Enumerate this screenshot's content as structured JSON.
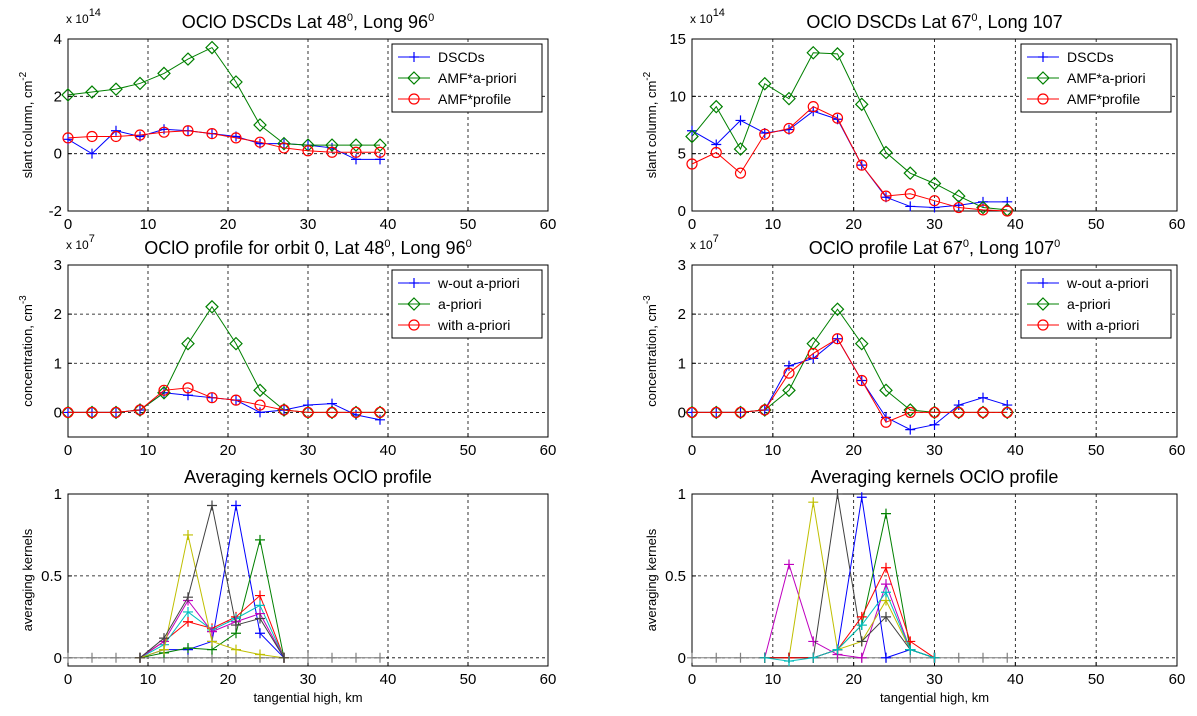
{
  "chart_data": [
    {
      "type": "line",
      "title": "OClO DSCDs Lat 48",
      "title_sup": "0",
      "title_rest": ", Long 96",
      "title_sup2": "0",
      "ylabel": "slant column, cm",
      "ylabel_sup": "-2",
      "xlabel": "",
      "multiplier": "x 10",
      "multiplier_exp": "14",
      "xlim": [
        0,
        60
      ],
      "ylim": [
        -2,
        4
      ],
      "xticks": [
        "0",
        "10",
        "20",
        "30",
        "40",
        "50",
        "60"
      ],
      "yticks": [
        "-2",
        "0",
        "2",
        "4"
      ],
      "grid": true,
      "legend": "top-right",
      "series": [
        {
          "name": "DSCDs",
          "color": "#0000ff",
          "marker": "plus",
          "x": [
            0,
            3,
            6,
            9,
            12,
            15,
            18,
            21,
            24,
            27,
            30,
            33,
            36,
            39
          ],
          "y": [
            0.5,
            0.0,
            0.8,
            0.6,
            0.85,
            0.8,
            0.7,
            0.6,
            0.35,
            0.35,
            0.3,
            0.2,
            -0.2,
            -0.2
          ]
        },
        {
          "name": "AMF*a-priori",
          "color": "#008000",
          "marker": "diamond",
          "x": [
            0,
            3,
            6,
            9,
            12,
            15,
            18,
            21,
            24,
            27,
            30,
            33,
            36,
            39
          ],
          "y": [
            2.05,
            2.15,
            2.25,
            2.45,
            2.8,
            3.3,
            3.7,
            2.5,
            1.0,
            0.35,
            0.3,
            0.3,
            0.3,
            0.3
          ]
        },
        {
          "name": "AMF*profile",
          "color": "#ff0000",
          "marker": "circle",
          "x": [
            0,
            3,
            6,
            9,
            12,
            15,
            18,
            21,
            24,
            27,
            30,
            33,
            36,
            39
          ],
          "y": [
            0.55,
            0.6,
            0.6,
            0.65,
            0.75,
            0.8,
            0.7,
            0.55,
            0.4,
            0.2,
            0.1,
            0.05,
            0.05,
            0.05
          ]
        }
      ]
    },
    {
      "type": "line",
      "title": "OClO DSCDs Lat 67",
      "title_sup": "0",
      "title_rest": ", Long 107",
      "title_sup2": "",
      "ylabel": "slant column, cm",
      "ylabel_sup": "-2",
      "xlabel": "",
      "multiplier": "x 10",
      "multiplier_exp": "14",
      "xlim": [
        0,
        60
      ],
      "ylim": [
        0,
        15
      ],
      "xticks": [
        "0",
        "10",
        "20",
        "30",
        "40",
        "50",
        "60"
      ],
      "yticks": [
        "0",
        "5",
        "10",
        "15"
      ],
      "grid": true,
      "legend": "top-right",
      "series": [
        {
          "name": "DSCDs",
          "color": "#0000ff",
          "marker": "plus",
          "x": [
            0,
            3,
            6,
            9,
            12,
            15,
            18,
            21,
            24,
            27,
            30,
            33,
            36,
            39
          ],
          "y": [
            7.0,
            5.8,
            7.9,
            6.8,
            7.1,
            8.7,
            8.0,
            4.0,
            1.2,
            0.4,
            0.3,
            0.5,
            0.8,
            0.8
          ]
        },
        {
          "name": "AMF*a-priori",
          "color": "#008000",
          "marker": "diamond",
          "x": [
            0,
            3,
            6,
            9,
            12,
            15,
            18,
            21,
            24,
            27,
            30,
            33,
            36,
            39
          ],
          "y": [
            6.5,
            9.1,
            5.4,
            11.1,
            9.8,
            13.8,
            13.7,
            9.3,
            5.1,
            3.3,
            2.4,
            1.3,
            0.3,
            0.1
          ]
        },
        {
          "name": "AMF*profile",
          "color": "#ff0000",
          "marker": "circle",
          "x": [
            0,
            3,
            6,
            9,
            12,
            15,
            18,
            21,
            24,
            27,
            30,
            33,
            36,
            39
          ],
          "y": [
            4.1,
            5.1,
            3.3,
            6.7,
            7.2,
            9.1,
            8.1,
            4.0,
            1.3,
            1.5,
            0.9,
            0.3,
            0.1,
            0.0
          ]
        }
      ]
    },
    {
      "type": "line",
      "title": "OClO profile for orbit 0, Lat 48",
      "title_sup": "0",
      "title_rest": ", Long 96",
      "title_sup2": "0",
      "ylabel": "concentration, cm",
      "ylabel_sup": "-3",
      "xlabel": "",
      "multiplier": "x 10",
      "multiplier_exp": "7",
      "xlim": [
        0,
        60
      ],
      "ylim": [
        -0.5,
        3
      ],
      "xticks": [
        "0",
        "10",
        "20",
        "30",
        "40",
        "50",
        "60"
      ],
      "yticks": [
        "0",
        "1",
        "2",
        "3"
      ],
      "grid": true,
      "legend": "top-right",
      "series": [
        {
          "name": "w-out a-priori",
          "color": "#0000ff",
          "marker": "plus",
          "x": [
            0,
            3,
            6,
            9,
            12,
            15,
            18,
            21,
            24,
            27,
            30,
            33,
            36,
            39
          ],
          "y": [
            0,
            0,
            0,
            0.05,
            0.4,
            0.35,
            0.3,
            0.25,
            0.0,
            0.05,
            0.15,
            0.18,
            -0.05,
            -0.15
          ]
        },
        {
          "name": "a-priori",
          "color": "#008000",
          "marker": "diamond",
          "x": [
            0,
            3,
            6,
            9,
            12,
            15,
            18,
            21,
            24,
            27,
            30,
            33,
            36,
            39
          ],
          "y": [
            0,
            0,
            0,
            0.05,
            0.4,
            1.4,
            2.15,
            1.4,
            0.45,
            0.05,
            0.0,
            0.0,
            0.0,
            0.0
          ]
        },
        {
          "name": "with a-priori",
          "color": "#ff0000",
          "marker": "circle",
          "x": [
            0,
            3,
            6,
            9,
            12,
            15,
            18,
            21,
            24,
            27,
            30,
            33,
            36,
            39
          ],
          "y": [
            0,
            0,
            0,
            0.05,
            0.45,
            0.5,
            0.3,
            0.25,
            0.15,
            0.05,
            0.0,
            0.0,
            0.0,
            0.0
          ]
        }
      ]
    },
    {
      "type": "line",
      "title": "OClO profile Lat 67",
      "title_sup": "0",
      "title_rest": ", Long 107",
      "title_sup2": "0",
      "ylabel": "concentration, cm",
      "ylabel_sup": "-3",
      "xlabel": "",
      "multiplier": "x 10",
      "multiplier_exp": "7",
      "xlim": [
        0,
        60
      ],
      "ylim": [
        -0.5,
        3
      ],
      "xticks": [
        "0",
        "10",
        "20",
        "30",
        "40",
        "50",
        "60"
      ],
      "yticks": [
        "0",
        "1",
        "2",
        "3"
      ],
      "grid": true,
      "legend": "top-right",
      "series": [
        {
          "name": "w-out a-priori",
          "color": "#0000ff",
          "marker": "plus",
          "x": [
            0,
            3,
            6,
            9,
            12,
            15,
            18,
            21,
            24,
            27,
            30,
            33,
            36,
            39
          ],
          "y": [
            0,
            0,
            0,
            0.05,
            0.95,
            1.1,
            1.5,
            0.65,
            -0.1,
            -0.35,
            -0.25,
            0.15,
            0.3,
            0.15
          ]
        },
        {
          "name": "a-priori",
          "color": "#008000",
          "marker": "diamond",
          "x": [
            0,
            3,
            6,
            9,
            12,
            15,
            18,
            21,
            24,
            27,
            30,
            33,
            36,
            39
          ],
          "y": [
            0,
            0,
            0,
            0.05,
            0.45,
            1.4,
            2.1,
            1.4,
            0.45,
            0.05,
            0.0,
            0.0,
            0.0,
            0.0
          ]
        },
        {
          "name": "with a-priori",
          "color": "#ff0000",
          "marker": "circle",
          "x": [
            0,
            3,
            6,
            9,
            12,
            15,
            18,
            21,
            24,
            27,
            30,
            33,
            36,
            39
          ],
          "y": [
            0,
            0,
            0,
            0.05,
            0.8,
            1.2,
            1.5,
            0.65,
            -0.2,
            0.0,
            0.0,
            0.0,
            0.0,
            0.0
          ]
        }
      ]
    },
    {
      "type": "line",
      "title": "Averaging kernels OClO profile",
      "title_sup": "",
      "title_rest": "",
      "title_sup2": "",
      "ylabel": "averaging kernels",
      "ylabel_sup": "",
      "xlabel": "tangential high, km",
      "multiplier": "",
      "multiplier_exp": "",
      "xlim": [
        0,
        60
      ],
      "ylim": [
        -0.05,
        1
      ],
      "xticks": [
        "0",
        "10",
        "20",
        "30",
        "40",
        "50",
        "60"
      ],
      "yticks": [
        "0",
        "0.5",
        "1"
      ],
      "grid": true,
      "legend": "none",
      "series": [
        {
          "color": "#808080",
          "marker": "plus",
          "x": [
            0,
            3,
            6,
            9,
            12,
            15,
            18,
            21,
            24,
            27,
            30,
            33,
            36,
            39
          ],
          "y": [
            0,
            0,
            0,
            0,
            0,
            0,
            0,
            0,
            0,
            0,
            0,
            0,
            0,
            0
          ]
        },
        {
          "color": "#0000ff",
          "marker": "plus",
          "x": [
            9,
            12,
            15,
            18,
            21,
            24,
            27
          ],
          "y": [
            0,
            0.05,
            0.05,
            0.1,
            0.93,
            0.15,
            0
          ]
        },
        {
          "color": "#008000",
          "marker": "plus",
          "x": [
            9,
            12,
            15,
            18,
            21,
            24,
            27
          ],
          "y": [
            0,
            0.03,
            0.06,
            0.05,
            0.15,
            0.72,
            0
          ]
        },
        {
          "color": "#ff0000",
          "marker": "plus",
          "x": [
            9,
            12,
            15,
            18,
            21,
            24,
            27
          ],
          "y": [
            0,
            0.1,
            0.22,
            0.18,
            0.25,
            0.38,
            0
          ]
        },
        {
          "color": "#00bfbf",
          "marker": "plus",
          "x": [
            9,
            12,
            15,
            18,
            21,
            24,
            27
          ],
          "y": [
            0,
            0.08,
            0.28,
            0.17,
            0.24,
            0.32,
            0
          ]
        },
        {
          "color": "#bf00bf",
          "marker": "plus",
          "x": [
            9,
            12,
            15,
            18,
            21,
            24,
            27
          ],
          "y": [
            0,
            0.1,
            0.35,
            0.16,
            0.22,
            0.27,
            0
          ]
        },
        {
          "color": "#bfbf00",
          "marker": "plus",
          "x": [
            9,
            12,
            15,
            18,
            21,
            24,
            27
          ],
          "y": [
            0,
            0.05,
            0.75,
            0.1,
            0.05,
            0.02,
            0
          ]
        },
        {
          "color": "#404040",
          "marker": "plus",
          "x": [
            9,
            12,
            15,
            18,
            21,
            24,
            27
          ],
          "y": [
            0,
            0.12,
            0.37,
            0.93,
            0.2,
            0.24,
            0
          ]
        }
      ]
    },
    {
      "type": "line",
      "title": "Averaging kernels OClO profile",
      "title_sup": "",
      "title_rest": "",
      "title_sup2": "",
      "ylabel": "averaging kernels",
      "ylabel_sup": "",
      "xlabel": "tangential high, km",
      "multiplier": "",
      "multiplier_exp": "",
      "xlim": [
        0,
        60
      ],
      "ylim": [
        -0.05,
        1
      ],
      "xticks": [
        "0",
        "10",
        "20",
        "30",
        "40",
        "50",
        "60"
      ],
      "yticks": [
        "0",
        "0.5",
        "1"
      ],
      "grid": true,
      "legend": "none",
      "series": [
        {
          "color": "#808080",
          "marker": "plus",
          "x": [
            0,
            3,
            6,
            9,
            12,
            15,
            18,
            21,
            24,
            27,
            30,
            33,
            36,
            39
          ],
          "y": [
            0,
            0,
            0,
            0,
            0,
            0,
            0,
            0,
            0,
            0,
            0,
            0,
            0,
            0
          ]
        },
        {
          "color": "#bf00bf",
          "marker": "plus",
          "x": [
            9,
            12,
            15,
            18,
            21,
            24,
            27,
            30
          ],
          "y": [
            0,
            0.57,
            0.1,
            0.02,
            0.0,
            0.45,
            0.05,
            0
          ]
        },
        {
          "color": "#bfbf00",
          "marker": "plus",
          "x": [
            9,
            12,
            15,
            18,
            21,
            24,
            27,
            30
          ],
          "y": [
            0,
            0.0,
            0.95,
            0.05,
            0.1,
            0.35,
            0.05,
            0
          ]
        },
        {
          "color": "#404040",
          "marker": "plus",
          "x": [
            9,
            12,
            15,
            18,
            21,
            24,
            27,
            30
          ],
          "y": [
            0,
            0.0,
            0.0,
            1.0,
            0.1,
            0.25,
            0.05,
            0
          ]
        },
        {
          "color": "#0000ff",
          "marker": "plus",
          "x": [
            9,
            12,
            15,
            18,
            21,
            24,
            27,
            30
          ],
          "y": [
            0,
            0.0,
            0.0,
            0.05,
            0.98,
            0.0,
            0.05,
            0
          ]
        },
        {
          "color": "#008000",
          "marker": "plus",
          "x": [
            9,
            12,
            15,
            18,
            21,
            24,
            27,
            30
          ],
          "y": [
            0,
            0.0,
            0.0,
            0.05,
            0.2,
            0.88,
            0.05,
            0
          ]
        },
        {
          "color": "#ff0000",
          "marker": "plus",
          "x": [
            9,
            12,
            15,
            18,
            21,
            24,
            27,
            30
          ],
          "y": [
            0,
            0.0,
            0.0,
            0.05,
            0.25,
            0.55,
            0.1,
            0
          ]
        },
        {
          "color": "#00bfbf",
          "marker": "plus",
          "x": [
            9,
            12,
            15,
            18,
            21,
            24,
            27,
            30
          ],
          "y": [
            0,
            -0.02,
            0.0,
            0.05,
            0.2,
            0.4,
            0.05,
            0
          ]
        }
      ]
    }
  ]
}
